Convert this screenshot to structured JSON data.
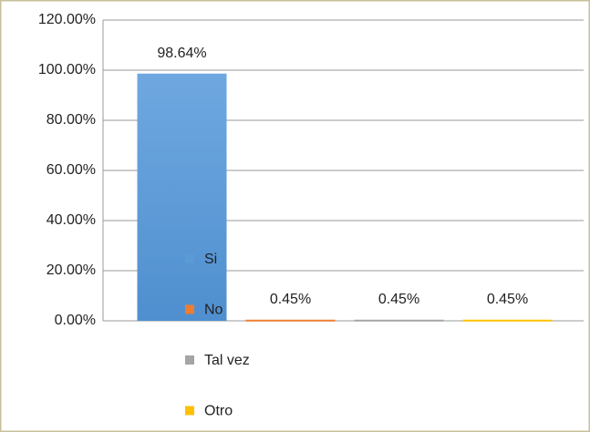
{
  "chart_data": {
    "type": "bar",
    "series": [
      {
        "name": "Si",
        "color": "#5b9bd5",
        "values": [
          98.64
        ],
        "value_labels": [
          "98.64%"
        ]
      },
      {
        "name": "No",
        "color": "#ed7d31",
        "values": [
          0.45
        ],
        "value_labels": [
          "0.45%"
        ]
      },
      {
        "name": "Tal vez",
        "color": "#a5a5a5",
        "values": [
          0.45
        ],
        "value_labels": [
          "0.45%"
        ]
      },
      {
        "name": "Otro",
        "color": "#ffc000",
        "values": [
          0.45
        ],
        "value_labels": [
          "0.45%"
        ]
      }
    ],
    "ylim": [
      0,
      120
    ],
    "yticks": [
      {
        "value": 0,
        "label": "0.00%"
      },
      {
        "value": 20,
        "label": "20.00%"
      },
      {
        "value": 40,
        "label": "40.00%"
      },
      {
        "value": 60,
        "label": "60.00%"
      },
      {
        "value": 80,
        "label": "80.00%"
      },
      {
        "value": 100,
        "label": "100.00%"
      },
      {
        "value": 120,
        "label": "120.00%"
      }
    ],
    "grid": true,
    "legend": "bottom-left"
  }
}
